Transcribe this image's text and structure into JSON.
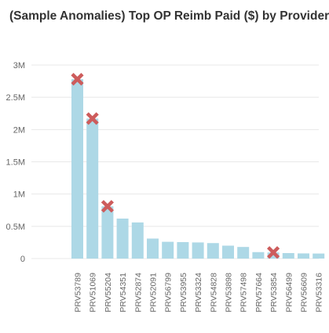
{
  "chart_data": {
    "type": "bar",
    "title": "(Sample Anomalies) Top OP Reimb Paid ($) by Provider",
    "categories": [
      "PRV53789",
      "PRV51069",
      "PRV55204",
      "PRV54351",
      "PRV52874",
      "PRV52091",
      "PRV56799",
      "PRV53955",
      "PRV53324",
      "PRV54828",
      "PRV53898",
      "PRV57498",
      "PRV57664",
      "PRV53854",
      "PRV56499",
      "PRV56609",
      "PRV53316"
    ],
    "values": [
      2780000,
      2170000,
      810000,
      620000,
      560000,
      310000,
      260000,
      255000,
      250000,
      240000,
      200000,
      180000,
      100000,
      95000,
      85000,
      80000,
      78000
    ],
    "anomalies": [
      "PRV53789",
      "PRV51069",
      "PRV55204",
      "PRV53854"
    ],
    "ylim": [
      0,
      3000000
    ],
    "y_ticks": [
      {
        "value": 0,
        "label": "0"
      },
      {
        "value": 500000,
        "label": "0.5M"
      },
      {
        "value": 1000000,
        "label": "1M"
      },
      {
        "value": 1500000,
        "label": "1.5M"
      },
      {
        "value": 2000000,
        "label": "2M"
      },
      {
        "value": 2500000,
        "label": "2.5M"
      },
      {
        "value": 3000000,
        "label": "3M"
      }
    ],
    "grid": true,
    "colors": {
      "bar": "#add8e6",
      "anomaly_marker": "#cd5c5c",
      "grid": "#e8e8e8",
      "text": "#666666"
    }
  }
}
